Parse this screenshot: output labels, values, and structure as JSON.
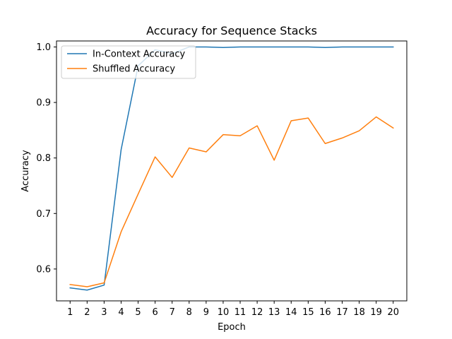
{
  "chart_data": {
    "type": "line",
    "title": "Accuracy for Sequence Stacks",
    "xlabel": "Epoch",
    "ylabel": "Accuracy",
    "x": [
      1,
      2,
      3,
      4,
      5,
      6,
      7,
      8,
      9,
      10,
      11,
      12,
      13,
      14,
      15,
      16,
      17,
      18,
      19,
      20
    ],
    "xlim": [
      0.2,
      20.8
    ],
    "ylim": [
      0.5426,
      1.0108
    ],
    "yticks": [
      0.6,
      0.7,
      0.8,
      0.9,
      1.0
    ],
    "ytick_labels": [
      "0.6",
      "0.7",
      "0.8",
      "0.9",
      "1.0"
    ],
    "grid": false,
    "legend_position": "upper-left",
    "series": [
      {
        "name": "In-Context Accuracy",
        "color": "#1f77b4",
        "values": [
          0.566,
          0.562,
          0.571,
          0.815,
          0.966,
          0.995,
          0.988,
          1.0,
          1.0,
          0.999,
          1.0,
          1.0,
          1.0,
          1.0,
          1.0,
          0.999,
          1.0,
          1.0,
          1.0,
          1.0
        ]
      },
      {
        "name": "Shuffled Accuracy",
        "color": "#ff7f0e",
        "values": [
          0.572,
          0.568,
          0.575,
          0.667,
          0.735,
          0.802,
          0.765,
          0.818,
          0.811,
          0.842,
          0.84,
          0.858,
          0.796,
          0.867,
          0.872,
          0.826,
          0.836,
          0.849,
          0.874,
          0.854
        ]
      }
    ]
  }
}
